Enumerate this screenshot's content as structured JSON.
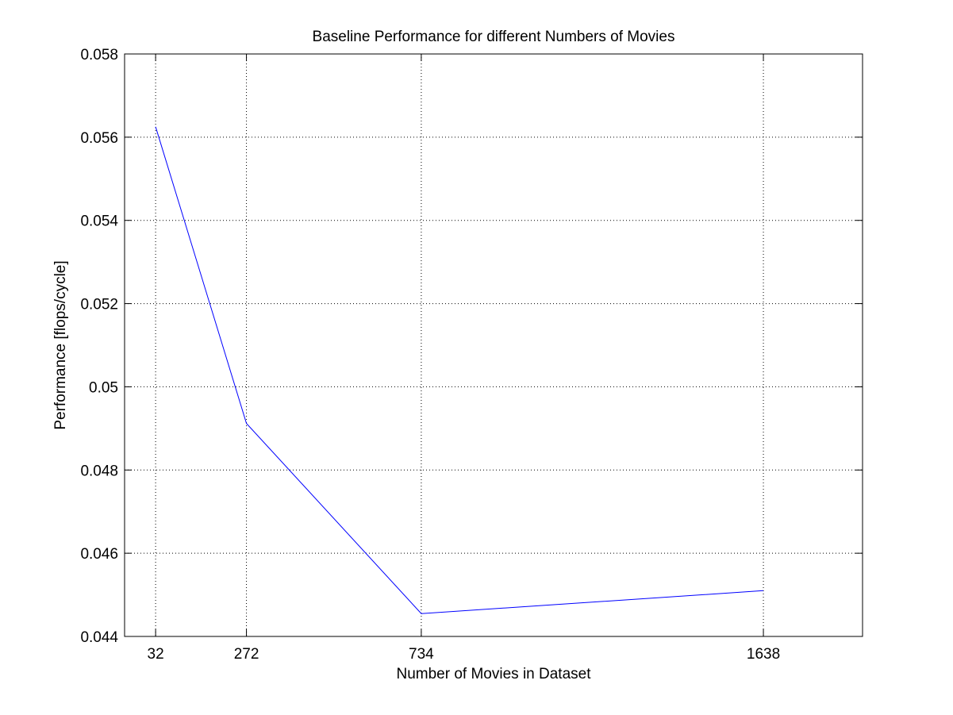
{
  "chart_data": {
    "type": "line",
    "title": "Baseline Performance for different Numbers of Movies",
    "xlabel": "Number of Movies in Dataset",
    "ylabel": "Performance [flops/cycle]",
    "x": [
      32,
      272,
      734,
      1638
    ],
    "x_tick_labels": [
      "32",
      "272",
      "734",
      "1638"
    ],
    "xlim": [
      -50,
      1900
    ],
    "ylim": [
      0.044,
      0.058
    ],
    "y_ticks": [
      0.044,
      0.046,
      0.048,
      0.05,
      0.052,
      0.054,
      0.056,
      0.058
    ],
    "y_tick_labels": [
      "0.044",
      "0.046",
      "0.048",
      "0.05",
      "0.052",
      "0.054",
      "0.056",
      "0.058"
    ],
    "grid": true,
    "series": [
      {
        "values": [
          0.05625,
          0.04912,
          0.04455,
          0.0451
        ],
        "color": "#0000ff"
      }
    ],
    "colors": {
      "background": "#ffffff",
      "axes": "#000000",
      "grid": "#000000",
      "line": "#0000ff"
    }
  }
}
